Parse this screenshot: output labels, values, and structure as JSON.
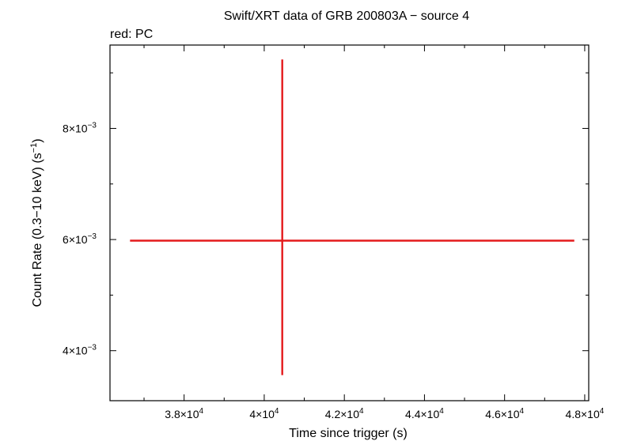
{
  "chart_data": {
    "type": "scatter",
    "title": "Swift/XRT data of GRB 200803A − source 4",
    "subtitle": "red: PC",
    "xlabel": "Time since trigger (s)",
    "ylabel_main": "Count Rate (0.3−10 keV) (s",
    "ylabel_sup": "−1",
    "ylabel_end": ")",
    "xlim": [
      36150,
      48100
    ],
    "ylim": [
      0.0031,
      0.0095
    ],
    "x_ticks": [
      {
        "value": 38000,
        "mant": "3.8×10",
        "exp": "4"
      },
      {
        "value": 40000,
        "mant": "4×10",
        "exp": "4"
      },
      {
        "value": 42000,
        "mant": "4.2×10",
        "exp": "4"
      },
      {
        "value": 44000,
        "mant": "4.4×10",
        "exp": "4"
      },
      {
        "value": 46000,
        "mant": "4.6×10",
        "exp": "4"
      },
      {
        "value": 48000,
        "mant": "4.8×10",
        "exp": "4"
      }
    ],
    "y_ticks": [
      {
        "value": 0.004,
        "mant": "4×10",
        "exp": "−3"
      },
      {
        "value": 0.006,
        "mant": "6×10",
        "exp": "−3"
      },
      {
        "value": 0.008,
        "mant": "8×10",
        "exp": "−3"
      }
    ],
    "x_minor_step": 1000,
    "y_minor_step": 0.001,
    "series": [
      {
        "color": "#e41a1c",
        "points": [
          {
            "x": 40450,
            "x_lo": 36650,
            "x_hi": 47740,
            "y": 0.00598,
            "y_lo": 0.00356,
            "y_hi": 0.00924
          }
        ]
      }
    ]
  }
}
